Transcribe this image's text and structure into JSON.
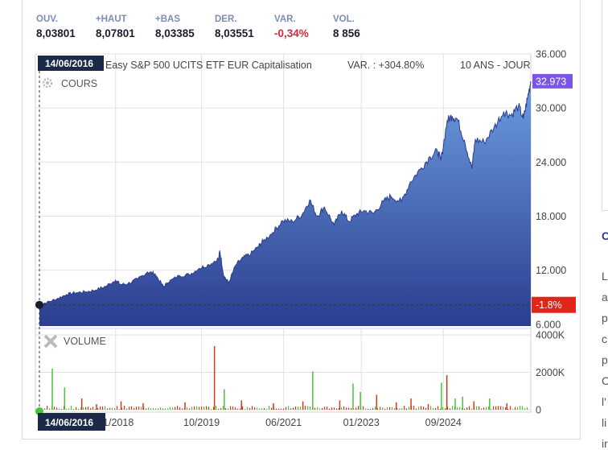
{
  "quote": [
    {
      "label": "OUV.",
      "value": "8,03801",
      "tone": "normal"
    },
    {
      "label": "+HAUT",
      "value": "8,07801",
      "tone": "normal"
    },
    {
      "label": "+BAS",
      "value": "8,03385",
      "tone": "normal"
    },
    {
      "label": "DER.",
      "value": "8,03551",
      "tone": "normal"
    },
    {
      "label": "VAR.",
      "value": "-0,34%",
      "tone": "negative"
    },
    {
      "label": "VOL.",
      "value": "8 856",
      "tone": "normal"
    }
  ],
  "chart_header": {
    "title": "Easy S&P 500 UCITS ETF EUR Capitalisation",
    "variation": "VAR. : +304.80%",
    "period": "10 ANS - JOUR"
  },
  "cursor": {
    "date": "14/06/2016",
    "change_label": "-1.8%",
    "value": 8.15
  },
  "last_price_label": "32.973",
  "right_text": [
    "C",
    "L",
    "a",
    "p",
    "c",
    "p",
    "C",
    "l'",
    "li",
    "ir"
  ],
  "colors": {
    "area_top": "#6b9de0",
    "area_bottom": "#2b3d8e",
    "line": "#2b3d8e",
    "last_badge": "#7b55e8",
    "change_badge": "#e0261b",
    "vol_up": "#4cc23a",
    "vol_down": "#d43b1e"
  },
  "chart_data": [
    {
      "type": "area",
      "panel": "price",
      "label": "COURS",
      "ylim": [
        5.8,
        36
      ],
      "yticks": [
        "36.000",
        "30.000",
        "24.000",
        "18.000",
        "12.000",
        "6.000"
      ],
      "ytick_values": [
        36,
        30,
        24,
        18,
        12,
        6
      ],
      "x_labels": [
        "01/2018",
        "10/2019",
        "06/2021",
        "01/2023",
        "09/2024"
      ],
      "x_label_times": [
        2018.0,
        2019.75,
        2021.42,
        2023.0,
        2024.67
      ],
      "xlim": [
        2016.45,
        2026.45
      ],
      "series": [
        {
          "x": [
            2016.45,
            2016.6,
            2016.8,
            2017.0,
            2017.2,
            2017.4,
            2017.6,
            2017.8,
            2018.0,
            2018.1,
            2018.25,
            2018.45,
            2018.65,
            2018.8,
            2018.98,
            2019.05,
            2019.3,
            2019.5,
            2019.7,
            2019.9,
            2020.1,
            2020.12,
            2020.2,
            2020.3,
            2020.45,
            2020.6,
            2020.75,
            2020.9,
            2021.0,
            2021.2,
            2021.4,
            2021.6,
            2021.8,
            2021.95,
            2022.1,
            2022.25,
            2022.45,
            2022.6,
            2022.75,
            2022.9,
            2023.05,
            2023.25,
            2023.45,
            2023.6,
            2023.82,
            2024.0,
            2024.2,
            2024.4,
            2024.55,
            2024.62,
            2024.75,
            2024.85,
            2024.95,
            2025.1,
            2025.25,
            2025.32,
            2025.5,
            2025.7,
            2025.9,
            2026.05,
            2026.2,
            2026.3,
            2026.38,
            2026.45
          ],
          "y": [
            8.2,
            8.4,
            8.8,
            9.3,
            9.5,
            9.6,
            9.8,
            10.2,
            10.9,
            10.4,
            10.5,
            11.0,
            11.8,
            11.6,
            10.1,
            10.6,
            11.4,
            11.5,
            12.2,
            12.6,
            13.3,
            14.2,
            11.4,
            10.6,
            12.6,
            13.4,
            13.8,
            14.6,
            15.2,
            16.2,
            17.5,
            17.4,
            18.2,
            19.8,
            18.0,
            19.0,
            17.0,
            18.6,
            17.4,
            18.2,
            18.6,
            18.3,
            19.6,
            20.2,
            19.6,
            21.8,
            23.2,
            24.6,
            25.2,
            24.2,
            28.6,
            29.1,
            28.8,
            26.4,
            23.3,
            26.5,
            26.2,
            27.8,
            29.6,
            29.2,
            30.2,
            28.8,
            31.0,
            32.973
          ]
        }
      ]
    },
    {
      "type": "bar",
      "panel": "volume",
      "label": "VOLUME",
      "ylim": [
        0,
        4000
      ],
      "yticks": [
        "4000K",
        "2000K",
        "0"
      ],
      "ytick_values": [
        4000,
        2000,
        0
      ],
      "series": [
        {
          "name": "VOLUME",
          "x": [
            2016.7,
            2016.95,
            2017.3,
            2017.6,
            2018.1,
            2018.55,
            2019.4,
            2020.0,
            2020.2,
            2020.55,
            2021.2,
            2021.8,
            2022.0,
            2022.55,
            2022.82,
            2022.97,
            2023.3,
            2023.7,
            2024.0,
            2024.35,
            2024.62,
            2024.73,
            2024.9,
            2025.05,
            2025.28,
            2025.6,
            2025.95
          ],
          "values": [
            2200,
            1200,
            600,
            300,
            450,
            350,
            400,
            3400,
            1100,
            500,
            350,
            450,
            2050,
            500,
            1400,
            950,
            800,
            400,
            600,
            300,
            1450,
            1850,
            600,
            700,
            450,
            600,
            350
          ],
          "direction": [
            "up",
            "up",
            "down",
            "down",
            "down",
            "down",
            "down",
            "down",
            "up",
            "down",
            "down",
            "down",
            "up",
            "down",
            "up",
            "up",
            "down",
            "down",
            "down",
            "down",
            "up",
            "down",
            "up",
            "up",
            "down",
            "up",
            "down"
          ]
        }
      ]
    }
  ]
}
